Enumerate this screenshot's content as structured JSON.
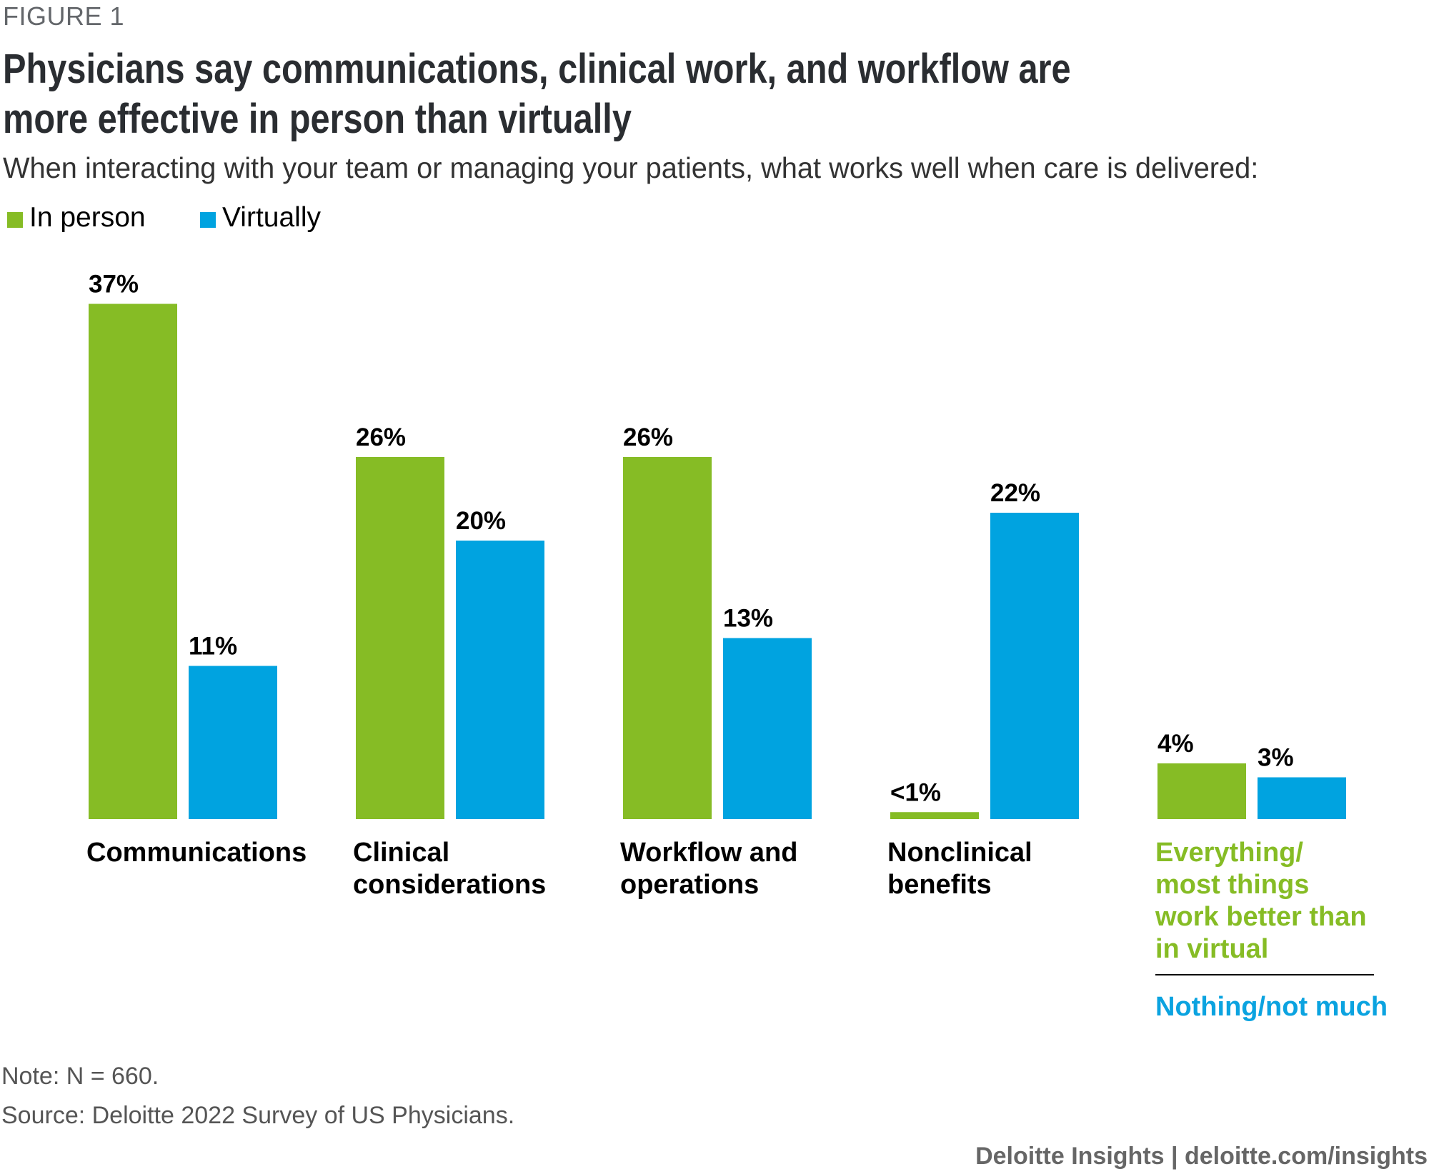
{
  "figure_label": "FIGURE 1",
  "title": "Physicians say communications, clinical work, and workflow are more effective in person than virtually",
  "subtitle": "When interacting with your team or managing your patients, what works well when care is delivered:",
  "colors": {
    "in_person": "#86bc25",
    "virtually": "#00a3e0",
    "title": "#2a2d31"
  },
  "legend": [
    {
      "label": "In person",
      "color": "#86bc25"
    },
    {
      "label": "Virtually",
      "color": "#00a3e0"
    }
  ],
  "chart_data": {
    "type": "bar",
    "categories": [
      "Communications",
      "Clinical considerations",
      "Workflow and operations",
      "Nonclinical benefits",
      "Everything/ most things work better than in virtual / Nothing/not much"
    ],
    "series": [
      {
        "name": "In person",
        "color": "#86bc25",
        "values": [
          37,
          26,
          26,
          0.5,
          4
        ],
        "labels": [
          "37%",
          "26%",
          "26%",
          "<1%",
          "4%"
        ]
      },
      {
        "name": "Virtually",
        "color": "#00a3e0",
        "values": [
          11,
          20,
          13,
          22,
          3
        ],
        "labels": [
          "11%",
          "20%",
          "13%",
          "22%",
          "3%"
        ]
      }
    ],
    "unit": "%",
    "ylim": [
      0,
      40
    ],
    "grid": false,
    "legend_position": "top-left"
  },
  "category_labels": [
    "Communications",
    "Clinical considerations",
    "Workflow and operations",
    "Nonclinical benefits"
  ],
  "last_category": {
    "in_person_label": "Everything/ most things work better than in virtual",
    "virtual_label": "Nothing/not much"
  },
  "note": "Note: N = 660.",
  "source": "Source: Deloitte 2022 Survey of US Physicians.",
  "footer": "Deloitte Insights | deloitte.com/insights"
}
